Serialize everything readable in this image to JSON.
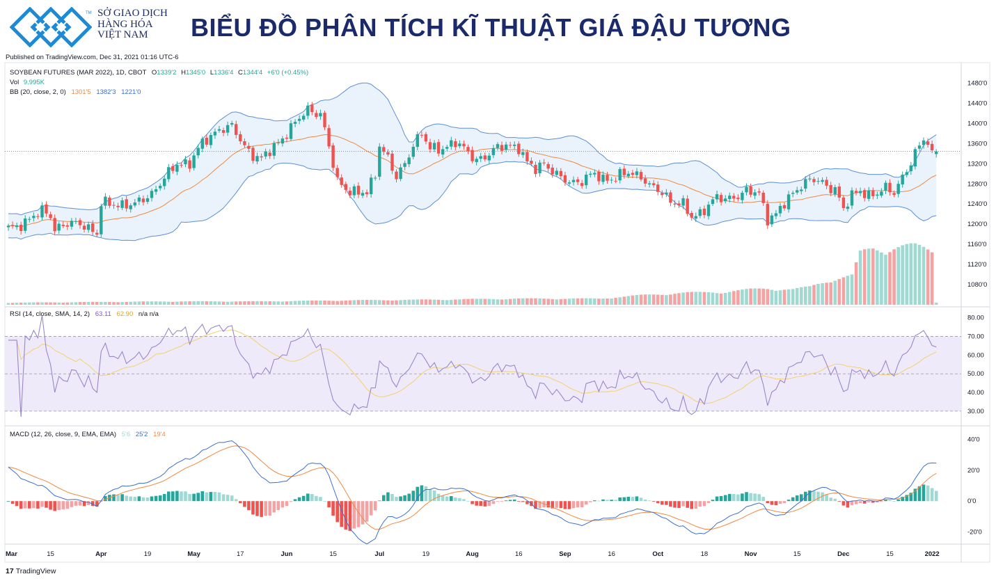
{
  "header": {
    "org_line1": "SỞ GIAO DỊCH",
    "org_line2": "HÀNG HÓA",
    "org_line3": "VIỆT NAM",
    "tm": "TM",
    "title": "BIỂU ĐỒ PHÂN TÍCH KĨ THUẬT GIÁ ĐẬU TƯƠNG",
    "published": "Published on TradingView.com, Dec 31, 2021 01:16 UTC-6"
  },
  "footer": {
    "brand_mark": "17",
    "brand": "TradingView"
  },
  "colors": {
    "up": "#26a69a",
    "down": "#ef5350",
    "up_vol": "#9fd9d2",
    "down_vol": "#f4a3a2",
    "bb_band": "#5b8fd6",
    "bb_basis": "#f0883e",
    "bb_fill": "#eaf3fb",
    "rsi": "#9a86c9",
    "rsi_ma": "#f2d16b",
    "rsi_fill": "#efeafa",
    "macd": "#3a6fd0",
    "signal": "#f0883e",
    "logo_blue": "#1e8ad6",
    "title_navy": "#1b2a6b"
  },
  "chart_data": [
    {
      "type": "line",
      "name": "price",
      "legend": {
        "symbol": "SOYBEAN FUTURES (MAR 2022), 1D, CBOT",
        "o_label": "O",
        "o": "1339'2",
        "h_label": "H",
        "h": "1345'0",
        "l_label": "L",
        "l": "1336'4",
        "c_label": "C",
        "c": "1344'4",
        "change": "+6'0 (+0.45%)",
        "vol_label": "Vol",
        "vol": "9.995K",
        "bb_label": "BB (20, close, 2, 0)",
        "bb_basis": "1301'5",
        "bb_upper": "1382'3",
        "bb_lower": "1221'0"
      },
      "ylim": [
        1040,
        1500
      ],
      "y_ticks": [
        1480,
        1440,
        1400,
        1360,
        1320,
        1280,
        1240,
        1200,
        1160,
        1120,
        1080
      ],
      "y_tick_labels": [
        "1480'0",
        "1440'0",
        "1400'0",
        "1360'0",
        "1320'0",
        "1280'0",
        "1240'0",
        "1200'0",
        "1160'0",
        "1120'0",
        "1080'0"
      ],
      "x_tick_labels": [
        "Mar",
        "15",
        "Apr",
        "19",
        "May",
        "17",
        "Jun",
        "15",
        "Jul",
        "19",
        "Aug",
        "16",
        "Sep",
        "16",
        "Oct",
        "18",
        "Nov",
        "15",
        "Dec",
        "15",
        "2022"
      ],
      "x_tick_bars": [
        0,
        10,
        22,
        33,
        44,
        55,
        66,
        77,
        88,
        99,
        110,
        121,
        132,
        143,
        154,
        165,
        176,
        187,
        198,
        209,
        219
      ],
      "last_price": 1344.5,
      "close_keys": [
        [
          0,
          1190
        ],
        [
          2,
          1196
        ],
        [
          5,
          1210
        ],
        [
          8,
          1225
        ],
        [
          10,
          1218
        ],
        [
          11,
          1192
        ],
        [
          14,
          1200
        ],
        [
          18,
          1200
        ],
        [
          21,
          1180
        ],
        [
          22,
          1240
        ],
        [
          25,
          1240
        ],
        [
          30,
          1238
        ],
        [
          34,
          1262
        ],
        [
          38,
          1300
        ],
        [
          40,
          1320
        ],
        [
          43,
          1322
        ],
        [
          46,
          1360
        ],
        [
          50,
          1390
        ],
        [
          53,
          1392
        ],
        [
          56,
          1355
        ],
        [
          58,
          1338
        ],
        [
          60,
          1328
        ],
        [
          62,
          1345
        ],
        [
          65,
          1372
        ],
        [
          68,
          1400
        ],
        [
          71,
          1428
        ],
        [
          74,
          1420
        ],
        [
          76,
          1352
        ],
        [
          78,
          1285
        ],
        [
          80,
          1272
        ],
        [
          83,
          1260
        ],
        [
          85,
          1262
        ],
        [
          87,
          1300
        ],
        [
          88,
          1360
        ],
        [
          90,
          1330
        ],
        [
          92,
          1290
        ],
        [
          94,
          1320
        ],
        [
          96,
          1360
        ],
        [
          98,
          1380
        ],
        [
          100,
          1348
        ],
        [
          103,
          1352
        ],
        [
          106,
          1362
        ],
        [
          109,
          1342
        ],
        [
          111,
          1330
        ],
        [
          113,
          1332
        ],
        [
          115,
          1345
        ],
        [
          118,
          1360
        ],
        [
          121,
          1350
        ],
        [
          123,
          1320
        ],
        [
          125,
          1312
        ],
        [
          127,
          1322
        ],
        [
          130,
          1295
        ],
        [
          133,
          1285
        ],
        [
          136,
          1285
        ],
        [
          139,
          1300
        ],
        [
          141,
          1290
        ],
        [
          144,
          1292
        ],
        [
          147,
          1302
        ],
        [
          150,
          1297
        ],
        [
          152,
          1275
        ],
        [
          155,
          1262
        ],
        [
          157,
          1248
        ],
        [
          160,
          1238
        ],
        [
          162,
          1212
        ],
        [
          164,
          1222
        ],
        [
          166,
          1240
        ],
        [
          168,
          1252
        ],
        [
          170,
          1248
        ],
        [
          172,
          1255
        ],
        [
          175,
          1265
        ],
        [
          178,
          1260
        ],
        [
          180,
          1212
        ],
        [
          182,
          1220
        ],
        [
          184,
          1240
        ],
        [
          186,
          1260
        ],
        [
          188,
          1280
        ],
        [
          190,
          1288
        ],
        [
          192,
          1285
        ],
        [
          194,
          1275
        ],
        [
          196,
          1272
        ],
        [
          198,
          1230
        ],
        [
          200,
          1255
        ],
        [
          202,
          1268
        ],
        [
          204,
          1258
        ],
        [
          206,
          1260
        ],
        [
          208,
          1270
        ],
        [
          210,
          1265
        ],
        [
          212,
          1295
        ],
        [
          214,
          1320
        ],
        [
          216,
          1355
        ],
        [
          217,
          1370
        ],
        [
          218,
          1365
        ],
        [
          219,
          1338
        ],
        [
          220,
          1344
        ]
      ]
    },
    {
      "type": "bar",
      "name": "volume",
      "vol_keys": [
        [
          0,
          6
        ],
        [
          20,
          8
        ],
        [
          40,
          10
        ],
        [
          60,
          10
        ],
        [
          80,
          13
        ],
        [
          100,
          15
        ],
        [
          120,
          18
        ],
        [
          140,
          18
        ],
        [
          150,
          28
        ],
        [
          160,
          35
        ],
        [
          170,
          38
        ],
        [
          176,
          45
        ],
        [
          180,
          48
        ],
        [
          186,
          45
        ],
        [
          190,
          52
        ],
        [
          195,
          75
        ],
        [
          200,
          85
        ],
        [
          202,
          150
        ],
        [
          205,
          165
        ],
        [
          210,
          170
        ],
        [
          215,
          170
        ],
        [
          219,
          160
        ],
        [
          220,
          10
        ]
      ]
    },
    {
      "type": "line",
      "name": "rsi",
      "legend": {
        "label": "RSI (14, close, SMA, 14, 2)",
        "rsi": "63.11",
        "ma": "62.90",
        "extra": "n/a n/a"
      },
      "ylim": [
        24,
        84
      ],
      "y_ticks": [
        80,
        70,
        60,
        50,
        40,
        30
      ],
      "y_tick_labels": [
        "80.00",
        "70.00",
        "60.00",
        "50.00",
        "40.00",
        "30.00"
      ],
      "bands": [
        30,
        50,
        70
      ]
    },
    {
      "type": "bar",
      "name": "macd",
      "legend": {
        "label": "MACD (12, 26, close, 9, EMA, EMA)",
        "hist": "5'6",
        "macd": "25'2",
        "signal": "19'4"
      },
      "ylim": [
        -26,
        46
      ],
      "y_ticks": [
        40,
        20,
        0,
        -20
      ],
      "y_tick_labels": [
        "40'0",
        "20'0",
        "0'0",
        "-20'0"
      ]
    }
  ]
}
